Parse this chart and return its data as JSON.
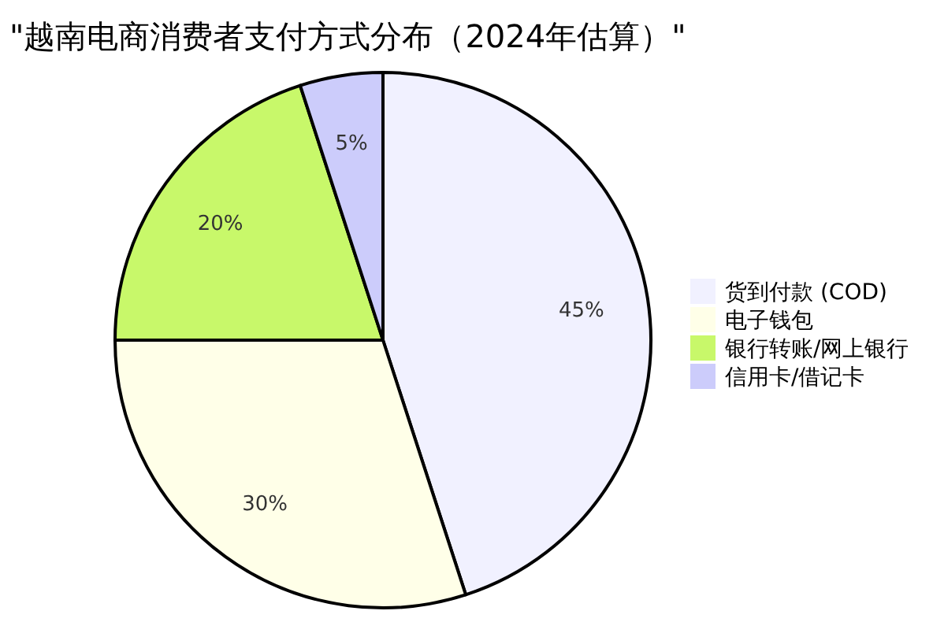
{
  "chart_data": {
    "type": "pie",
    "title": "\"越南电商消费者支付方式分布（2024年估算）\"",
    "categories": [
      "货到付款 (COD)",
      "电子钱包",
      "银行转账/网上银行",
      "信用卡/借记卡"
    ],
    "values": [
      45,
      30,
      20,
      5
    ],
    "colors": [
      "#f1f1ff",
      "#ffffe8",
      "#c8f86a",
      "#ccccfb"
    ],
    "value_labels": [
      "45%",
      "30%",
      "20%",
      "5%"
    ],
    "legend": "right"
  }
}
